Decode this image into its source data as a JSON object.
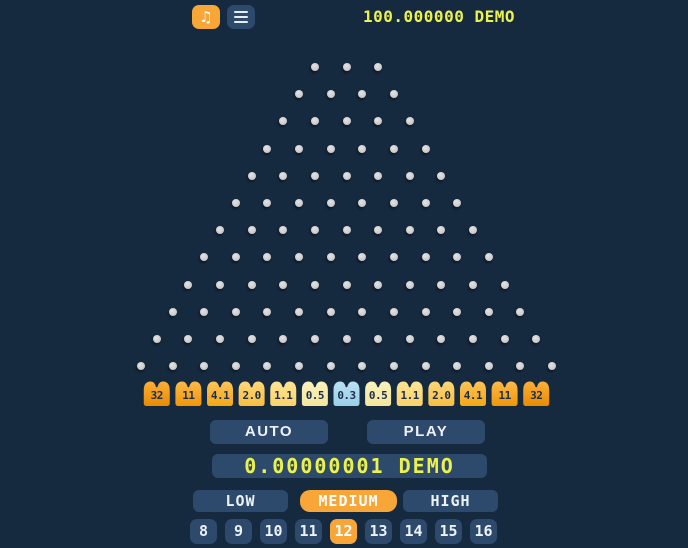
{
  "header": {
    "balance": "100.000000 DEMO",
    "sound_icon": "♫"
  },
  "board": {
    "rows": 12,
    "top_row_pegs": 3
  },
  "multipliers": [
    {
      "label": "32",
      "top": "#fcb13b",
      "bottom": "#e88b03"
    },
    {
      "label": "11",
      "top": "#fdbb4e",
      "bottom": "#ef9708"
    },
    {
      "label": "4.1",
      "top": "#fcc55e",
      "bottom": "#f3a714"
    },
    {
      "label": "2.0",
      "top": "#fdd77d",
      "bottom": "#f7bf41"
    },
    {
      "label": "1.1",
      "top": "#fce596",
      "bottom": "#fad369"
    },
    {
      "label": "0.5",
      "top": "#faf2c0",
      "bottom": "#f4e69c"
    },
    {
      "label": "0.3",
      "top": "#bce2f5",
      "bottom": "#99cfe9"
    },
    {
      "label": "0.5",
      "top": "#faf2c0",
      "bottom": "#f4e69c"
    },
    {
      "label": "1.1",
      "top": "#fce596",
      "bottom": "#fad369"
    },
    {
      "label": "2.0",
      "top": "#fdd77d",
      "bottom": "#f7bf41"
    },
    {
      "label": "4.1",
      "top": "#fcc55e",
      "bottom": "#f3a714"
    },
    {
      "label": "11",
      "top": "#fdbb4e",
      "bottom": "#ef9708"
    },
    {
      "label": "32",
      "top": "#fcb13b",
      "bottom": "#e88b03"
    }
  ],
  "controls": {
    "auto_label": "AUTO",
    "play_label": "PLAY",
    "bet_value": "0.00000001 DEMO",
    "risk": {
      "options": [
        "LOW",
        "MEDIUM",
        "HIGH"
      ],
      "selected": "MEDIUM"
    },
    "rows_options": [
      "8",
      "9",
      "10",
      "11",
      "12",
      "13",
      "14",
      "15",
      "16"
    ],
    "rows_selected": "12"
  },
  "colors": {
    "background": "#15293f",
    "accent_orange": "#f7a637",
    "panel_navy": "#2d4a6d",
    "money_text": "#ecf24c",
    "peg": "#c9c9c9",
    "bucket_text": "#1d2c4b"
  }
}
